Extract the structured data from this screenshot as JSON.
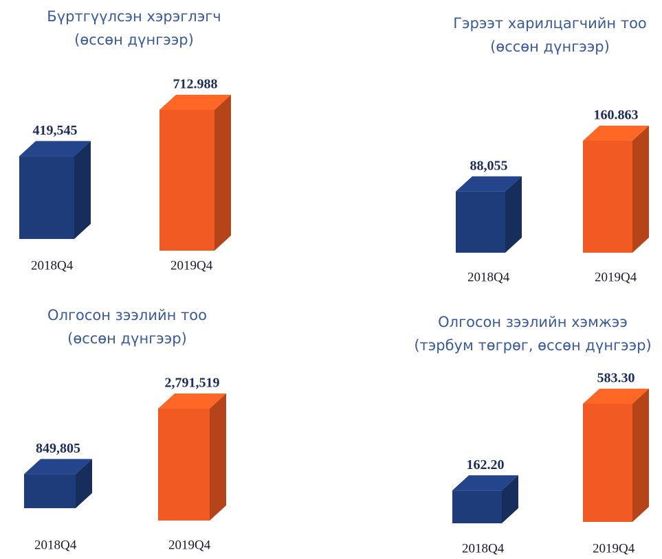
{
  "chart_data": [
    {
      "type": "bar",
      "title": "Бүртгүүлсэн хэрэглэгч",
      "subtitle": "(өссөн дүнгээр)",
      "categories": [
        "2018Q4",
        "2019Q4"
      ],
      "values": [
        419545,
        712988
      ],
      "value_labels": [
        "419,545",
        "712.988"
      ],
      "colors": [
        "#1f3c7a",
        "#f15a22"
      ]
    },
    {
      "type": "bar",
      "title": "Гэрээт харилцагчийн тоо",
      "subtitle": "(өссөн дүнгээр)",
      "categories": [
        "2018Q4",
        "2019Q4"
      ],
      "values": [
        88055,
        160863
      ],
      "value_labels": [
        "88,055",
        "160.863"
      ],
      "colors": [
        "#1f3c7a",
        "#f15a22"
      ]
    },
    {
      "type": "bar",
      "title": "Олгосон зээлийн тоо",
      "subtitle": "(өссөн дүнгээр)",
      "categories": [
        "2018Q4",
        "2019Q4"
      ],
      "values": [
        849805,
        2791519
      ],
      "value_labels": [
        "849,805",
        "2,791,519"
      ],
      "colors": [
        "#1f3c7a",
        "#f15a22"
      ]
    },
    {
      "type": "bar",
      "title": "Олгосон зээлийн хэмжээ",
      "subtitle": "(тэрбум төгрөг, өссөн дүнгээр)",
      "categories": [
        "2018Q4",
        "2019Q4"
      ],
      "values": [
        162.2,
        583.3
      ],
      "value_labels": [
        "162.20",
        "583.30"
      ],
      "colors": [
        "#1f3c7a",
        "#f15a22"
      ]
    }
  ]
}
